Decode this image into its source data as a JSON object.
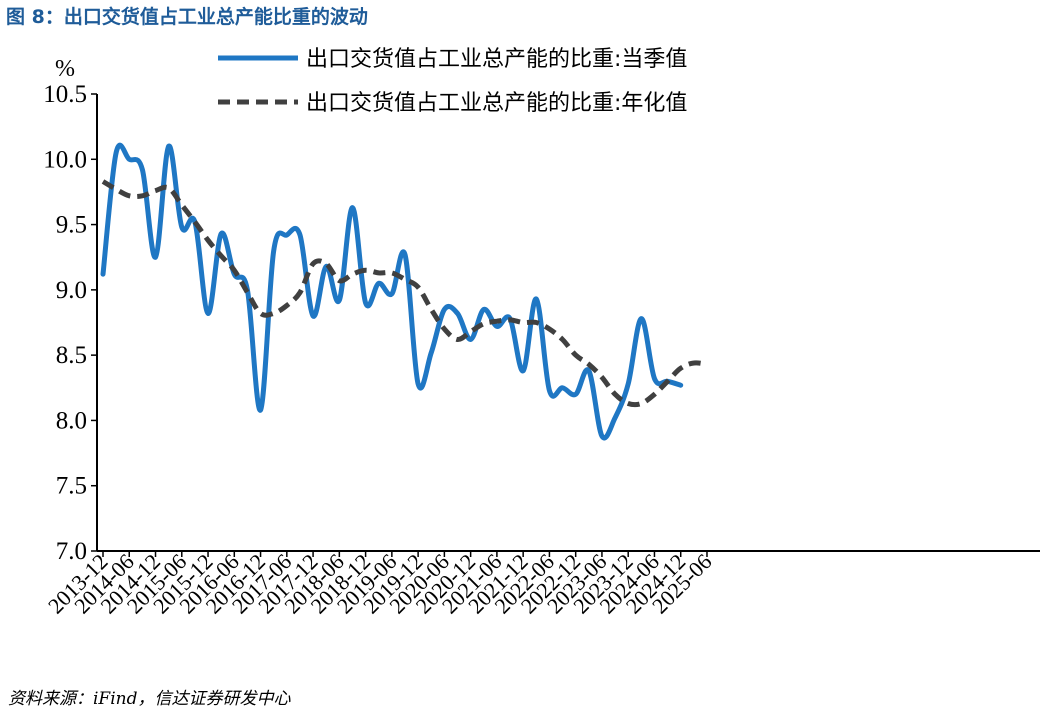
{
  "figure": {
    "title": "图 8：出口交货值占工业总产能比重的波动",
    "source": "资料来源：iFind，信达证券研发中心"
  },
  "chart_data": {
    "type": "line",
    "y_unit": "%",
    "ylim": [
      7.0,
      10.5
    ],
    "y_ticks": [
      "7.0",
      "7.5",
      "8.0",
      "8.5",
      "9.0",
      "9.5",
      "10.0",
      "10.5"
    ],
    "x_tick_labels": [
      "2013-12",
      "2014-06",
      "2014-12",
      "2015-06",
      "2015-12",
      "2016-06",
      "2016-12",
      "2017-06",
      "2017-12",
      "2018-06",
      "2018-12",
      "2019-06",
      "2019-12",
      "2020-06",
      "2020-12",
      "2021-06",
      "2021-12",
      "2022-06",
      "2022-12",
      "2023-06",
      "2023-12",
      "2024-06",
      "2024-12",
      "2025-06"
    ],
    "grid": false,
    "legend_position": "top",
    "series": [
      {
        "name": "出口交货值占工业总产能的比重:当季值",
        "color": "#1f77c4",
        "style": "solid",
        "points": [
          [
            "2013-12",
            9.12
          ],
          [
            "2014-03",
            10.05
          ],
          [
            "2014-06",
            10.0
          ],
          [
            "2014-09",
            9.92
          ],
          [
            "2014-12",
            9.25
          ],
          [
            "2015-03",
            10.1
          ],
          [
            "2015-06",
            9.48
          ],
          [
            "2015-09",
            9.52
          ],
          [
            "2015-12",
            8.82
          ],
          [
            "2016-03",
            9.43
          ],
          [
            "2016-06",
            9.12
          ],
          [
            "2016-09",
            9.0
          ],
          [
            "2016-12",
            8.08
          ],
          [
            "2017-03",
            9.3
          ],
          [
            "2017-06",
            9.42
          ],
          [
            "2017-09",
            9.42
          ],
          [
            "2017-12",
            8.8
          ],
          [
            "2018-03",
            9.18
          ],
          [
            "2018-06",
            8.92
          ],
          [
            "2018-09",
            9.63
          ],
          [
            "2018-12",
            8.9
          ],
          [
            "2019-03",
            9.05
          ],
          [
            "2019-06",
            8.97
          ],
          [
            "2019-09",
            9.27
          ],
          [
            "2019-12",
            8.28
          ],
          [
            "2020-03",
            8.52
          ],
          [
            "2020-06",
            8.85
          ],
          [
            "2020-09",
            8.82
          ],
          [
            "2020-12",
            8.62
          ],
          [
            "2021-03",
            8.85
          ],
          [
            "2021-06",
            8.72
          ],
          [
            "2021-09",
            8.78
          ],
          [
            "2021-12",
            8.38
          ],
          [
            "2022-03",
            8.93
          ],
          [
            "2022-06",
            8.23
          ],
          [
            "2022-09",
            8.25
          ],
          [
            "2022-12",
            8.2
          ],
          [
            "2023-03",
            8.38
          ],
          [
            "2023-06",
            7.88
          ],
          [
            "2023-09",
            8.02
          ],
          [
            "2023-12",
            8.28
          ],
          [
            "2024-03",
            8.78
          ],
          [
            "2024-06",
            8.32
          ],
          [
            "2024-09",
            8.3
          ],
          [
            "2024-12",
            8.27
          ]
        ]
      },
      {
        "name": "出口交货值占工业总产能的比重:年化值",
        "color": "#404040",
        "style": "dashed",
        "points": [
          [
            "2013-12",
            9.83
          ],
          [
            "2014-03",
            9.77
          ],
          [
            "2014-06",
            9.72
          ],
          [
            "2014-09",
            9.72
          ],
          [
            "2014-12",
            9.76
          ],
          [
            "2015-03",
            9.78
          ],
          [
            "2015-06",
            9.65
          ],
          [
            "2015-09",
            9.52
          ],
          [
            "2015-12",
            9.38
          ],
          [
            "2016-03",
            9.26
          ],
          [
            "2016-06",
            9.15
          ],
          [
            "2016-09",
            8.98
          ],
          [
            "2016-12",
            8.82
          ],
          [
            "2017-03",
            8.82
          ],
          [
            "2017-06",
            8.88
          ],
          [
            "2017-09",
            8.98
          ],
          [
            "2017-12",
            9.2
          ],
          [
            "2018-03",
            9.2
          ],
          [
            "2018-06",
            9.07
          ],
          [
            "2018-09",
            9.12
          ],
          [
            "2018-12",
            9.15
          ],
          [
            "2019-03",
            9.13
          ],
          [
            "2019-06",
            9.13
          ],
          [
            "2019-09",
            9.08
          ],
          [
            "2019-12",
            9.02
          ],
          [
            "2020-03",
            8.85
          ],
          [
            "2020-06",
            8.7
          ],
          [
            "2020-09",
            8.62
          ],
          [
            "2020-12",
            8.68
          ],
          [
            "2021-03",
            8.74
          ],
          [
            "2021-06",
            8.76
          ],
          [
            "2021-09",
            8.77
          ],
          [
            "2021-12",
            8.75
          ],
          [
            "2022-03",
            8.75
          ],
          [
            "2022-06",
            8.7
          ],
          [
            "2022-09",
            8.62
          ],
          [
            "2022-12",
            8.5
          ],
          [
            "2023-03",
            8.43
          ],
          [
            "2023-06",
            8.33
          ],
          [
            "2023-09",
            8.2
          ],
          [
            "2023-12",
            8.13
          ],
          [
            "2024-03",
            8.13
          ],
          [
            "2024-06",
            8.2
          ],
          [
            "2024-09",
            8.3
          ],
          [
            "2024-12",
            8.4
          ],
          [
            "2025-03",
            8.44
          ],
          [
            "2025-06",
            8.43
          ]
        ]
      }
    ]
  }
}
